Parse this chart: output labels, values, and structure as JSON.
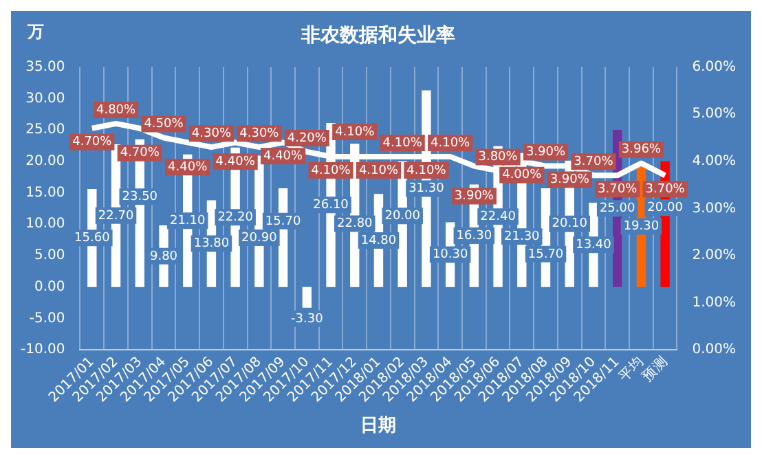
{
  "chart_data": {
    "type": "bar",
    "title": "非农数据和失业率",
    "xlabel": "日期",
    "ylabel": "万",
    "categories": [
      "2017/01",
      "2017/02",
      "2017/03",
      "2017/04",
      "2017/05",
      "2017/06",
      "2017/07",
      "2017/08",
      "2017/09",
      "2017/10",
      "2017/11",
      "2017/12",
      "2018/01",
      "2018/02",
      "2018/03",
      "2018/04",
      "2018/05",
      "2018/06",
      "2018/07",
      "2018/08",
      "2018/09",
      "2018/10",
      "2018/11",
      "平均",
      "预测"
    ],
    "series": [
      {
        "colors": [
          "#ffffff",
          "#ffffff",
          "#ffffff",
          "#ffffff",
          "#ffffff",
          "#ffffff",
          "#ffffff",
          "#ffffff",
          "#ffffff",
          "#ffffff",
          "#ffffff",
          "#ffffff",
          "#ffffff",
          "#ffffff",
          "#ffffff",
          "#ffffff",
          "#ffffff",
          "#ffffff",
          "#ffffff",
          "#ffffff",
          "#ffffff",
          "#ffffff",
          "#7030a0",
          "#ff6600",
          "#ff0000"
        ],
        "values": [
          15.6,
          22.7,
          23.5,
          9.8,
          21.1,
          13.8,
          22.2,
          20.9,
          15.7,
          -3.3,
          26.1,
          22.8,
          14.8,
          20.0,
          31.3,
          10.3,
          16.3,
          22.4,
          21.3,
          15.7,
          20.1,
          13.4,
          25.0,
          19.3,
          20.0
        ],
        "value_labels": [
          "15.60",
          "22.70",
          "23.50",
          "9.80",
          "21.10",
          "13.80",
          "22.20",
          "20.90",
          "15.70",
          "-3.30",
          "26.10",
          "22.80",
          "14.80",
          "20.00",
          "31.30",
          "10.30",
          "16.30",
          "22.40",
          "21.30",
          "15.70",
          "20.10",
          "13.40",
          "25.00",
          "19.30",
          "20.00"
        ]
      },
      {
        "type": "line",
        "axis": "y2",
        "color": "#ffffff",
        "values": [
          4.7,
          4.8,
          4.7,
          4.5,
          4.4,
          4.3,
          4.4,
          4.3,
          4.4,
          4.2,
          4.1,
          4.1,
          4.1,
          4.1,
          4.1,
          4.1,
          3.9,
          3.8,
          4.0,
          3.9,
          3.9,
          3.7,
          3.7,
          3.96,
          3.7
        ],
        "value_labels": [
          "4.70%",
          "4.80%",
          "4.70%",
          "4.50%",
          "4.40%",
          "4.30%",
          "4.40%",
          "4.30%",
          "4.40%",
          "4.20%",
          "4.10%",
          "4.10%",
          "4.10%",
          "4.10%",
          "4.10%",
          "4.10%",
          "3.90%",
          "3.80%",
          "4.00%",
          "3.90%",
          "3.90%",
          "3.70%",
          "3.70%",
          "3.96%",
          "3.70%"
        ]
      }
    ],
    "ylim": [
      -10,
      35
    ],
    "yticks": [
      {
        "value": -10,
        "label": "-10.00"
      },
      {
        "value": -5,
        "label": "-5.00"
      },
      {
        "value": 0,
        "label": "0.00"
      },
      {
        "value": 5,
        "label": "5.00"
      },
      {
        "value": 10,
        "label": "10.00"
      },
      {
        "value": 15,
        "label": "15.00"
      },
      {
        "value": 20,
        "label": "20.00"
      },
      {
        "value": 25,
        "label": "25.00"
      },
      {
        "value": 30,
        "label": "30.00"
      },
      {
        "value": 35,
        "label": "35.00"
      }
    ],
    "y2lim": [
      0,
      6
    ],
    "y2ticks": [
      {
        "value": 0,
        "label": "0.00%"
      },
      {
        "value": 1,
        "label": "1.00%"
      },
      {
        "value": 2,
        "label": "2.00%"
      },
      {
        "value": 3,
        "label": "3.00%"
      },
      {
        "value": 4,
        "label": "4.00%"
      },
      {
        "value": 5,
        "label": "5.00%"
      },
      {
        "value": 6,
        "label": "6.00%"
      }
    ],
    "grid": "x",
    "legend": false,
    "marker": "none",
    "line_style": "solid"
  }
}
